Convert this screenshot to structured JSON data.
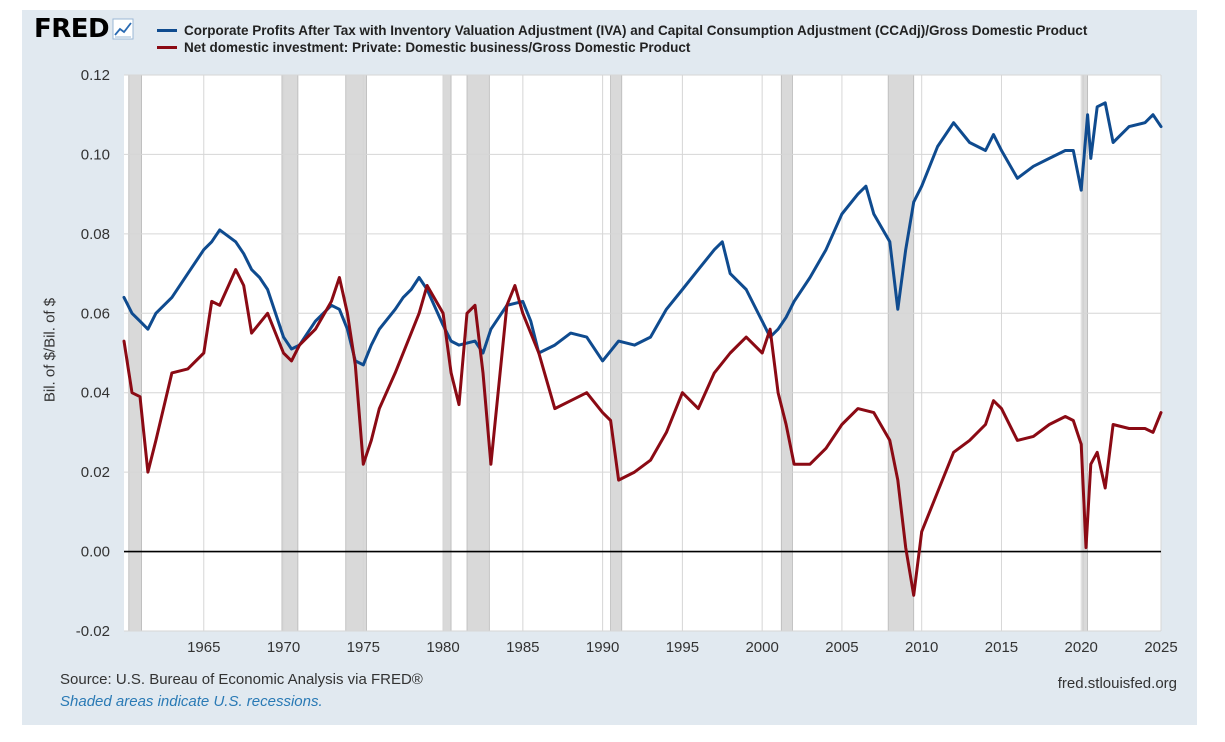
{
  "logo": {
    "text": "FRED",
    "icon": "trend-line-icon"
  },
  "footer": {
    "source": "Source: U.S. Bureau of Economic Analysis via FRED®",
    "recession_note": "Shaded areas indicate U.S. recessions.",
    "site": "fred.stlouisfed.org"
  },
  "colors": {
    "frame_bg": "#e1e9f0",
    "series1": "#0f4b8f",
    "series2": "#8b0a14",
    "recession": "#d9d9d9",
    "grid": "#d6d6d6"
  },
  "chart_data": {
    "type": "line",
    "title": "",
    "xlabel": "",
    "ylabel": "Bil. of $/Bil. of $",
    "xlim": [
      1960.0,
      2025.0
    ],
    "ylim": [
      -0.02,
      0.12
    ],
    "yticks": [
      -0.02,
      0.0,
      0.02,
      0.04,
      0.06,
      0.08,
      0.1,
      0.12
    ],
    "ytick_labels": [
      "-0.02",
      "0.00",
      "0.02",
      "0.04",
      "0.06",
      "0.08",
      "0.10",
      "0.12"
    ],
    "xticks": [
      1965,
      1970,
      1975,
      1980,
      1985,
      1990,
      1995,
      2000,
      2005,
      2010,
      2015,
      2020,
      2025
    ],
    "grid": true,
    "legend_position": "top",
    "recessions": [
      [
        1960.3,
        1961.1
      ],
      [
        1969.9,
        1970.9
      ],
      [
        1973.9,
        1975.2
      ],
      [
        1980.0,
        1980.5
      ],
      [
        1981.5,
        1982.9
      ],
      [
        1990.5,
        1991.2
      ],
      [
        2001.2,
        2001.9
      ],
      [
        2007.9,
        2009.5
      ],
      [
        2020.1,
        2020.4
      ]
    ],
    "series": [
      {
        "name": "Corporate Profits After Tax with Inventory Valuation Adjustment (IVA) and Capital Consumption Adjustment (CCAdj)/Gross Domestic Product",
        "color": "#0f4b8f",
        "x": [
          1960.0,
          1960.5,
          1961.0,
          1961.5,
          1962.0,
          1963.0,
          1964.0,
          1965.0,
          1965.5,
          1966.0,
          1967.0,
          1967.5,
          1968.0,
          1968.5,
          1969.0,
          1970.0,
          1970.5,
          1971.0,
          1972.0,
          1973.0,
          1973.5,
          1974.0,
          1974.5,
          1975.0,
          1975.5,
          1976.0,
          1977.0,
          1977.5,
          1978.0,
          1978.5,
          1979.0,
          1980.0,
          1980.5,
          1981.0,
          1982.0,
          1982.5,
          1983.0,
          1984.0,
          1985.0,
          1985.5,
          1986.0,
          1987.0,
          1988.0,
          1989.0,
          1990.0,
          1991.0,
          1992.0,
          1993.0,
          1994.0,
          1995.0,
          1996.0,
          1997.0,
          1997.5,
          1998.0,
          1999.0,
          2000.0,
          2000.5,
          2001.0,
          2001.5,
          2002.0,
          2003.0,
          2004.0,
          2005.0,
          2006.0,
          2006.5,
          2007.0,
          2008.0,
          2008.5,
          2009.0,
          2009.5,
          2010.0,
          2011.0,
          2012.0,
          2013.0,
          2014.0,
          2014.5,
          2015.0,
          2016.0,
          2017.0,
          2018.0,
          2019.0,
          2019.5,
          2020.0,
          2020.4,
          2020.6,
          2021.0,
          2021.5,
          2022.0,
          2023.0,
          2024.0,
          2024.5,
          2025.0
        ],
        "values": [
          0.064,
          0.06,
          0.058,
          0.056,
          0.06,
          0.064,
          0.07,
          0.076,
          0.078,
          0.081,
          0.078,
          0.075,
          0.071,
          0.069,
          0.066,
          0.054,
          0.051,
          0.052,
          0.058,
          0.062,
          0.061,
          0.056,
          0.048,
          0.047,
          0.052,
          0.056,
          0.061,
          0.064,
          0.066,
          0.069,
          0.066,
          0.057,
          0.053,
          0.052,
          0.053,
          0.05,
          0.056,
          0.062,
          0.063,
          0.058,
          0.05,
          0.052,
          0.055,
          0.054,
          0.048,
          0.053,
          0.052,
          0.054,
          0.061,
          0.066,
          0.071,
          0.076,
          0.078,
          0.07,
          0.066,
          0.058,
          0.054,
          0.056,
          0.059,
          0.063,
          0.069,
          0.076,
          0.085,
          0.09,
          0.092,
          0.085,
          0.078,
          0.061,
          0.076,
          0.088,
          0.092,
          0.102,
          0.108,
          0.103,
          0.101,
          0.105,
          0.101,
          0.094,
          0.097,
          0.099,
          0.101,
          0.101,
          0.091,
          0.11,
          0.099,
          0.112,
          0.113,
          0.103,
          0.107,
          0.108,
          0.11,
          0.107
        ]
      },
      {
        "name": "Net domestic investment: Private: Domestic business/Gross Domestic Product",
        "color": "#8b0a14",
        "x": [
          1960.0,
          1960.5,
          1961.0,
          1961.5,
          1962.0,
          1963.0,
          1964.0,
          1965.0,
          1965.5,
          1966.0,
          1967.0,
          1967.5,
          1968.0,
          1969.0,
          1970.0,
          1970.5,
          1971.0,
          1972.0,
          1973.0,
          1973.5,
          1974.0,
          1974.5,
          1975.0,
          1975.5,
          1976.0,
          1977.0,
          1978.0,
          1978.5,
          1979.0,
          1980.0,
          1980.5,
          1981.0,
          1981.5,
          1982.0,
          1982.5,
          1983.0,
          1984.0,
          1984.5,
          1985.0,
          1986.0,
          1987.0,
          1988.0,
          1989.0,
          1990.0,
          1990.5,
          1991.0,
          1992.0,
          1993.0,
          1994.0,
          1995.0,
          1996.0,
          1997.0,
          1998.0,
          1999.0,
          2000.0,
          2000.5,
          2001.0,
          2001.5,
          2002.0,
          2003.0,
          2004.0,
          2005.0,
          2006.0,
          2007.0,
          2008.0,
          2008.5,
          2009.0,
          2009.5,
          2010.0,
          2011.0,
          2012.0,
          2013.0,
          2014.0,
          2014.5,
          2015.0,
          2016.0,
          2017.0,
          2018.0,
          2019.0,
          2019.5,
          2020.0,
          2020.3,
          2020.6,
          2021.0,
          2021.5,
          2022.0,
          2023.0,
          2024.0,
          2024.5,
          2025.0
        ],
        "values": [
          0.053,
          0.04,
          0.039,
          0.02,
          0.028,
          0.045,
          0.046,
          0.05,
          0.063,
          0.062,
          0.071,
          0.067,
          0.055,
          0.06,
          0.05,
          0.048,
          0.052,
          0.056,
          0.063,
          0.069,
          0.06,
          0.047,
          0.022,
          0.028,
          0.036,
          0.045,
          0.055,
          0.06,
          0.067,
          0.06,
          0.045,
          0.037,
          0.06,
          0.062,
          0.045,
          0.022,
          0.062,
          0.067,
          0.06,
          0.05,
          0.036,
          0.038,
          0.04,
          0.035,
          0.033,
          0.018,
          0.02,
          0.023,
          0.03,
          0.04,
          0.036,
          0.045,
          0.05,
          0.054,
          0.05,
          0.056,
          0.04,
          0.032,
          0.022,
          0.022,
          0.026,
          0.032,
          0.036,
          0.035,
          0.028,
          0.018,
          0.001,
          -0.011,
          0.005,
          0.015,
          0.025,
          0.028,
          0.032,
          0.038,
          0.036,
          0.028,
          0.029,
          0.032,
          0.034,
          0.033,
          0.027,
          0.001,
          0.022,
          0.025,
          0.016,
          0.032,
          0.031,
          0.031,
          0.03,
          0.035
        ]
      }
    ]
  }
}
